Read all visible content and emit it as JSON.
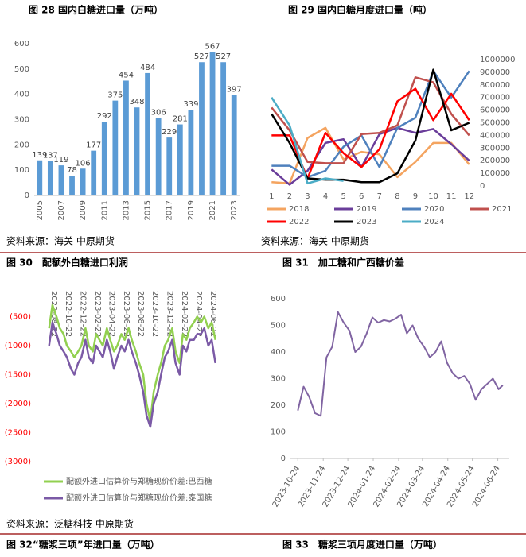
{
  "chart_data": [
    {
      "type": "bar",
      "title": "图 28 国内白糖进口量（万吨）",
      "source": "资料来源：海关 中原期货",
      "color": "#5b9bd5",
      "categories": [
        "2005",
        null,
        "2007",
        null,
        "2009",
        null,
        "2011",
        null,
        "2013",
        null,
        "2015",
        null,
        "2017",
        null,
        "2019",
        null,
        "2021",
        null,
        "2023"
      ],
      "values": [
        139,
        137,
        119,
        78,
        106,
        177,
        292,
        375,
        454,
        348,
        484,
        306,
        229,
        281,
        339,
        527,
        567,
        527,
        397
      ],
      "ylim": [
        0,
        600
      ],
      "yticks": [
        0,
        100,
        200,
        300,
        400,
        500,
        600
      ]
    },
    {
      "type": "line",
      "title": "图 29 国内白糖月度进口量（吨）",
      "source": "资料来源：海关 中原期货",
      "y_axis_side": "right",
      "x": [
        1,
        2,
        3,
        4,
        5,
        6,
        7,
        8,
        9,
        10,
        11,
        12
      ],
      "xlim": [
        0.5,
        12.5
      ],
      "xticks": [
        1,
        2,
        3,
        4,
        5,
        6,
        7,
        8,
        9,
        10,
        11,
        12
      ],
      "ylim": [
        0,
        1000000
      ],
      "yticks": [
        0,
        100000,
        200000,
        300000,
        400000,
        500000,
        600000,
        700000,
        800000,
        900000,
        1000000
      ],
      "series": [
        {
          "name": "2018",
          "color": "#f4a460",
          "values": [
            30000,
            20000,
            380000,
            460000,
            210000,
            270000,
            250000,
            70000,
            190000,
            340000,
            340000,
            170000
          ]
        },
        {
          "name": "2019",
          "color": "#6a3d9a",
          "values": [
            130000,
            10000,
            120000,
            340000,
            370000,
            150000,
            410000,
            460000,
            420000,
            450000,
            330000,
            200000
          ]
        },
        {
          "name": "2020",
          "color": "#4f81bd",
          "values": [
            160000,
            160000,
            70000,
            120000,
            310000,
            400000,
            150000,
            460000,
            540000,
            910000,
            700000,
            910000
          ]
        },
        {
          "name": "2021",
          "color": "#c0504d",
          "values": [
            620000,
            440000,
            190000,
            180000,
            180000,
            410000,
            420000,
            480000,
            860000,
            820000,
            570000,
            400000
          ]
        },
        {
          "name": "2022",
          "color": "#ff0000",
          "values": [
            400000,
            400000,
            60000,
            420000,
            260000,
            150000,
            290000,
            670000,
            770000,
            520000,
            730000,
            520000
          ]
        },
        {
          "name": "2023",
          "color": "#000000",
          "values": [
            570000,
            340000,
            60000,
            50000,
            50000,
            30000,
            30000,
            100000,
            360000,
            920000,
            440000,
            500000
          ]
        },
        {
          "name": "2024",
          "color": "#4bacc6",
          "values": [
            700000,
            480000,
            20000,
            60000,
            40000,
            null,
            null,
            null,
            null,
            null,
            null,
            null
          ]
        }
      ]
    },
    {
      "type": "line",
      "title": "图 30　配额外白糖进口利润",
      "source": "资料来源：泛糖科技 中原期货",
      "tick_label_color": "#ff0000",
      "x": [
        "2022-08-01",
        "2022-08-15",
        "2022-09-01",
        "2022-09-15",
        "2022-10-01",
        "2022-10-15",
        "2022-11-01",
        "2022-11-15",
        "2022-12-01",
        "2022-12-15",
        "2023-01-01",
        "2023-01-15",
        "2023-02-01",
        "2023-02-15",
        "2023-03-01",
        "2023-03-15",
        "2023-04-01",
        "2023-04-15",
        "2023-05-01",
        "2023-05-15",
        "2023-06-01",
        "2023-06-15",
        "2023-07-01",
        "2023-07-15",
        "2023-08-01",
        "2023-08-15",
        "2023-09-01",
        "2023-09-15",
        "2023-10-01",
        "2023-10-15",
        "2023-11-01",
        "2023-11-15",
        "2023-12-01",
        "2023-12-15",
        "2024-01-01",
        "2024-01-15",
        "2024-02-01",
        "2024-02-15",
        "2024-03-01",
        "2024-03-15",
        "2024-04-01",
        "2024-04-15",
        "2024-05-01",
        "2024-05-15",
        "2024-06-01",
        "2024-06-15",
        "2024-07-01"
      ],
      "xlim": [
        "2022-06-06",
        "2024-08-01"
      ],
      "xticks": [
        "2022-08-22",
        "2022-10-22",
        "2022-12-22",
        "2023-02-22",
        "2023-04-22",
        "2023-06-22",
        "2023-08-22",
        "2023-10-22",
        "2023-12-22",
        "2024-02-22",
        "2024-04-22",
        "2024-06-22"
      ],
      "ylim": [
        -3000,
        0
      ],
      "yticks": [
        {
          "value": -500,
          "label": "(500)"
        },
        {
          "value": -1000,
          "label": "(1000)"
        },
        {
          "value": -1500,
          "label": "(1500)"
        },
        {
          "value": -2000,
          "label": "(2000)"
        },
        {
          "value": -2500,
          "label": "(2500)"
        },
        {
          "value": -3000,
          "label": "(3000)"
        }
      ],
      "series": [
        {
          "name": "配额外进口估算价与郑糖现价价差:巴西糖",
          "color": "#92d050",
          "values": [
            -700,
            -300,
            -500,
            -700,
            -800,
            -1000,
            -1100,
            -1200,
            -1100,
            -1000,
            -700,
            -1000,
            -1100,
            -800,
            -900,
            -1000,
            -700,
            -900,
            -1100,
            -1000,
            -800,
            -900,
            -700,
            -900,
            -1100,
            -1300,
            -1500,
            -2000,
            -2300,
            -1800,
            -1500,
            -1300,
            -1000,
            -900,
            -700,
            -1100,
            -1300,
            -800,
            -900,
            -700,
            -600,
            -500,
            -600,
            -500,
            -700,
            -600,
            -900
          ]
        },
        {
          "name": "配额外进口估算价与郑糖现价价差:泰国糖",
          "color": "#7b5aa6",
          "values": [
            -1000,
            -600,
            -800,
            -1000,
            -1100,
            -1200,
            -1400,
            -1500,
            -1300,
            -1200,
            -900,
            -1200,
            -1300,
            -1000,
            -1100,
            -1200,
            -900,
            -1100,
            -1400,
            -1200,
            -1000,
            -1100,
            -900,
            -1100,
            -1300,
            -1500,
            -1800,
            -2200,
            -2400,
            -2000,
            -1800,
            -1500,
            -1200,
            -1100,
            -900,
            -1300,
            -1500,
            -1000,
            -1100,
            -900,
            -900,
            -800,
            -800,
            -700,
            -1000,
            -900,
            -1300
          ]
        }
      ]
    },
    {
      "type": "line",
      "title": "图 31　加工糖和广西糖价差",
      "x": [
        "2023-10-24",
        "2023-10-31",
        "2023-11-07",
        "2023-11-14",
        "2023-11-21",
        "2023-11-28",
        "2023-12-05",
        "2023-12-12",
        "2023-12-19",
        "2023-12-26",
        "2024-01-02",
        "2024-01-09",
        "2024-01-16",
        "2024-01-23",
        "2024-01-30",
        "2024-02-06",
        "2024-02-13",
        "2024-02-20",
        "2024-02-27",
        "2024-03-05",
        "2024-03-12",
        "2024-03-19",
        "2024-03-26",
        "2024-04-02",
        "2024-04-09",
        "2024-04-16",
        "2024-04-23",
        "2024-04-30",
        "2024-05-07",
        "2024-05-14",
        "2024-05-21",
        "2024-05-28",
        "2024-06-04",
        "2024-06-11",
        "2024-06-18",
        "2024-06-25",
        "2024-06-30"
      ],
      "xlim": [
        "2023-10-15",
        "2024-07-08"
      ],
      "xticks": [
        "2023-10-24",
        "2023-11-24",
        "2023-12-24",
        "2024-01-24",
        "2024-02-24",
        "2024-03-24",
        "2024-04-24",
        "2024-05-24",
        "2024-06-24"
      ],
      "ylim": [
        0,
        600
      ],
      "yticks": [
        0,
        100,
        200,
        300,
        400,
        500,
        600
      ],
      "series": [
        {
          "color": "#8064a2",
          "values": [
            180,
            270,
            230,
            170,
            160,
            380,
            420,
            550,
            510,
            480,
            400,
            420,
            470,
            530,
            510,
            520,
            515,
            525,
            540,
            470,
            500,
            450,
            420,
            380,
            400,
            440,
            360,
            320,
            300,
            310,
            280,
            220,
            260,
            280,
            300,
            260,
            275
          ]
        }
      ]
    }
  ],
  "captions": [
    "图 32“糖浆三项”年进口量（万吨）",
    "图 33　糖浆三项月度进口量（万吨）"
  ]
}
